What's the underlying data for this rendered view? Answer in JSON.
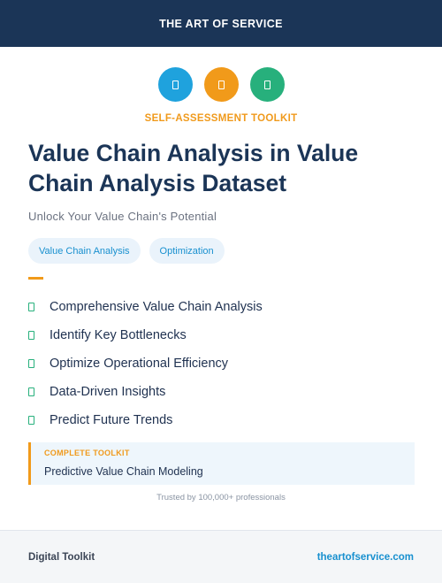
{
  "header": {
    "title": "THE ART OF SERVICE"
  },
  "icons": [
    {
      "name": "document-icon",
      "color": "#1fa2dd"
    },
    {
      "name": "document-icon",
      "color": "#f19a1a"
    },
    {
      "name": "document-icon",
      "color": "#27b07c"
    }
  ],
  "kicker": "SELF-ASSESSMENT TOOLKIT",
  "title": "Value Chain Analysis in Value Chain Analysis Dataset",
  "subtitle": "Unlock Your Value Chain's Potential",
  "tags": [
    "Value Chain Analysis",
    "Optimization"
  ],
  "features": [
    "Comprehensive Value Chain Analysis",
    "Identify Key Bottlenecks",
    "Optimize Operational Efficiency",
    "Data-Driven Insights",
    "Predict Future Trends"
  ],
  "callout": {
    "label": "COMPLETE TOOLKIT",
    "text": "Predictive Value Chain Modeling"
  },
  "trusted": "Trusted by 100,000+ professionals",
  "footer": {
    "left": "Digital Toolkit",
    "right": "theartofservice.com"
  },
  "colors": {
    "navy": "#1b3557",
    "orange": "#f19a1a",
    "blue": "#1fa2dd",
    "green": "#27b07c"
  }
}
